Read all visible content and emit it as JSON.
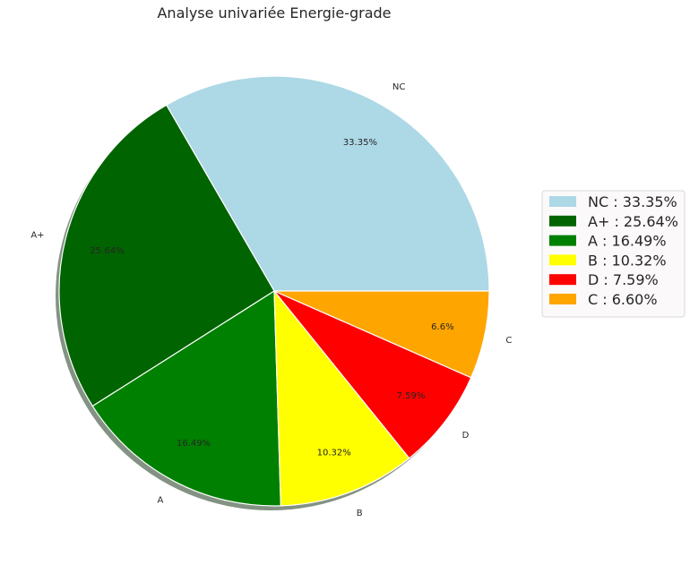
{
  "chart_data": {
    "type": "pie",
    "title": "Analyse univariée Energie-grade",
    "categories": [
      "NC",
      "A+",
      "A",
      "B",
      "D",
      "C"
    ],
    "values": [
      33.35,
      25.64,
      16.49,
      10.32,
      7.59,
      6.6
    ],
    "pct_labels": [
      "33.35%",
      "25.64%",
      "16.49%",
      "10.32%",
      "7.59%",
      "6.6%"
    ],
    "colors": [
      "#add8e6",
      "#006400",
      "#008000",
      "#ffff00",
      "#ff0000",
      "#ffa500"
    ],
    "legend": {
      "placement": "right",
      "entries": [
        "NC : 33.35%",
        "A+ : 25.64%",
        "A : 16.49%",
        "B : 10.32%",
        "D : 7.59%",
        "C : 6.60%"
      ]
    },
    "shadow": true,
    "start_angle_deg": 0,
    "direction": "counterclockwise"
  }
}
